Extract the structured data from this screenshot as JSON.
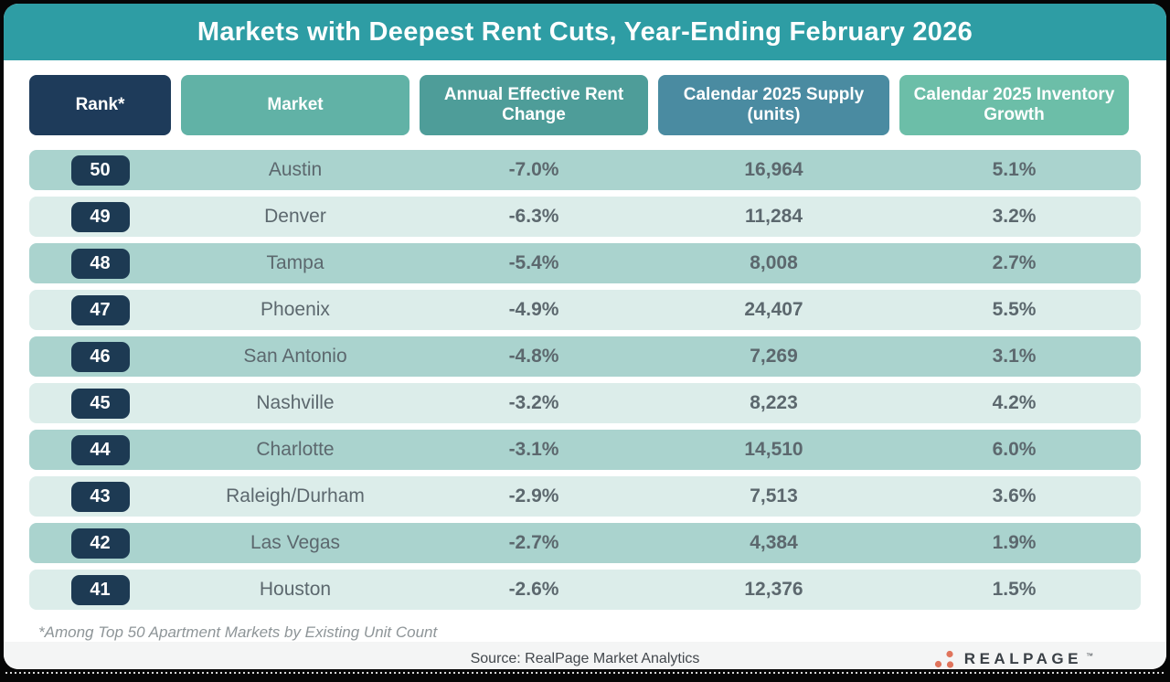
{
  "title": "Markets with Deepest Rent Cuts, Year-Ending February 2026",
  "colors": {
    "banner": "#2E9DA4",
    "row_dark": "#AAD3CE",
    "row_light": "#DCEDEA",
    "rank_badge": "#1D3A53",
    "logo_dots": "#E0745C"
  },
  "columns": [
    {
      "label": "Rank*",
      "color": "#1E3B5A"
    },
    {
      "label": "Market",
      "color": "#61B2A6"
    },
    {
      "label": "Annual Effective Rent Change",
      "color": "#4E9D99"
    },
    {
      "label": "Calendar 2025 Supply (units)",
      "color": "#4A8BA1"
    },
    {
      "label": "Calendar 2025 Inventory Growth",
      "color": "#6CBEA8"
    }
  ],
  "table": {
    "rows": [
      {
        "rank": "50",
        "market": "Austin",
        "rent_change": "-7.0%",
        "supply": "16,964",
        "inventory_growth": "5.1%"
      },
      {
        "rank": "49",
        "market": "Denver",
        "rent_change": "-6.3%",
        "supply": "11,284",
        "inventory_growth": "3.2%"
      },
      {
        "rank": "48",
        "market": "Tampa",
        "rent_change": "-5.4%",
        "supply": "8,008",
        "inventory_growth": "2.7%"
      },
      {
        "rank": "47",
        "market": "Phoenix",
        "rent_change": "-4.9%",
        "supply": "24,407",
        "inventory_growth": "5.5%"
      },
      {
        "rank": "46",
        "market": "San Antonio",
        "rent_change": "-4.8%",
        "supply": "7,269",
        "inventory_growth": "3.1%"
      },
      {
        "rank": "45",
        "market": "Nashville",
        "rent_change": "-3.2%",
        "supply": "8,223",
        "inventory_growth": "4.2%"
      },
      {
        "rank": "44",
        "market": "Charlotte",
        "rent_change": "-3.1%",
        "supply": "14,510",
        "inventory_growth": "6.0%"
      },
      {
        "rank": "43",
        "market": "Raleigh/Durham",
        "rent_change": "-2.9%",
        "supply": "7,513",
        "inventory_growth": "3.6%"
      },
      {
        "rank": "42",
        "market": "Las Vegas",
        "rent_change": "-2.7%",
        "supply": "4,384",
        "inventory_growth": "1.9%"
      },
      {
        "rank": "41",
        "market": "Houston",
        "rent_change": "-2.6%",
        "supply": "12,376",
        "inventory_growth": "1.5%"
      }
    ]
  },
  "footnote": "*Among Top 50 Apartment Markets by Existing Unit Count",
  "source": "Source: RealPage Market Analytics",
  "logo": {
    "text": "REALPAGE",
    "tm": "™"
  },
  "chart_data": {
    "type": "table",
    "title": "Markets with Deepest Rent Cuts, Year-Ending February 2026",
    "columns": [
      "Rank*",
      "Market",
      "Annual Effective Rent Change",
      "Calendar 2025 Supply (units)",
      "Calendar 2025 Inventory Growth"
    ],
    "rows": [
      [
        50,
        "Austin",
        -7.0,
        16964,
        5.1
      ],
      [
        49,
        "Denver",
        -6.3,
        11284,
        3.2
      ],
      [
        48,
        "Tampa",
        -5.4,
        8008,
        2.7
      ],
      [
        47,
        "Phoenix",
        -4.9,
        24407,
        5.5
      ],
      [
        46,
        "San Antonio",
        -4.8,
        7269,
        3.1
      ],
      [
        45,
        "Nashville",
        -3.2,
        8223,
        4.2
      ],
      [
        44,
        "Charlotte",
        -3.1,
        14510,
        6.0
      ],
      [
        43,
        "Raleigh/Durham",
        -2.9,
        7513,
        3.6
      ],
      [
        42,
        "Las Vegas",
        -2.7,
        4384,
        1.9
      ],
      [
        41,
        "Houston",
        -2.6,
        12376,
        1.5
      ]
    ],
    "units": {
      "rent_change": "%",
      "inventory_growth": "%",
      "supply": "units"
    },
    "footnote": "*Among Top 50 Apartment Markets by Existing Unit Count"
  }
}
